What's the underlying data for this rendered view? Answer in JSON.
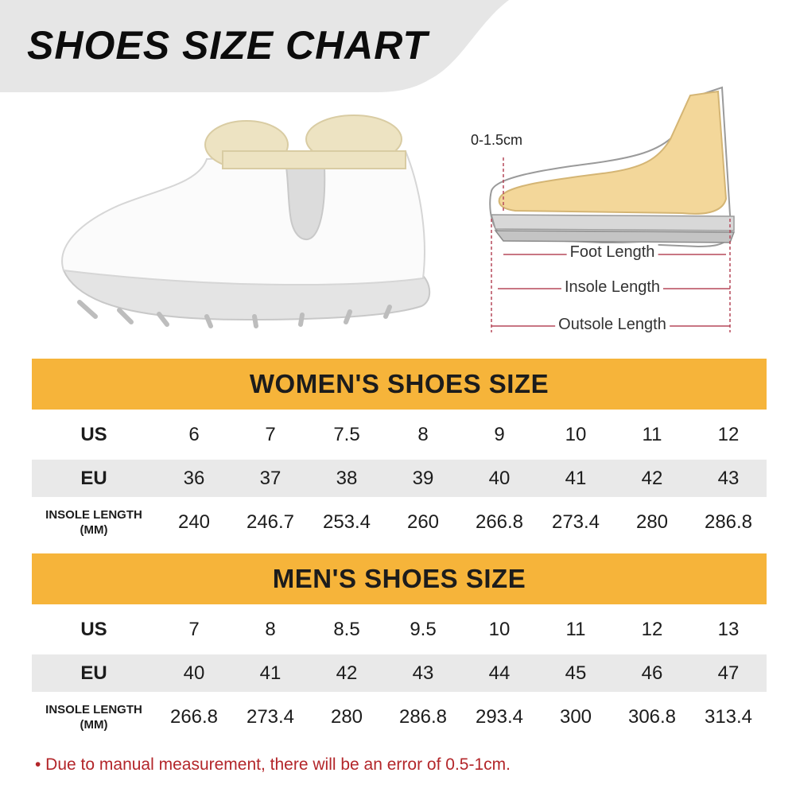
{
  "title": "SHOES SIZE CHART",
  "diagram": {
    "heel_label": "0-1.5cm",
    "foot_length": "Foot Length",
    "insole_length": "Insole Length",
    "outsole_length": "Outsole Length"
  },
  "women": {
    "heading": "WOMEN'S SHOES SIZE",
    "us_label": "US",
    "eu_label": "EU",
    "insole_label_1": "INSOLE LENGTH",
    "insole_label_2": "(MM)",
    "us": [
      "6",
      "7",
      "7.5",
      "8",
      "9",
      "10",
      "11",
      "12"
    ],
    "eu": [
      "36",
      "37",
      "38",
      "39",
      "40",
      "41",
      "42",
      "43"
    ],
    "insole": [
      "240",
      "246.7",
      "253.4",
      "260",
      "266.8",
      "273.4",
      "280",
      "286.8"
    ]
  },
  "men": {
    "heading": "MEN'S SHOES SIZE",
    "us_label": "US",
    "eu_label": "EU",
    "insole_label_1": "INSOLE LENGTH",
    "insole_label_2": "(MM)",
    "us": [
      "7",
      "8",
      "8.5",
      "9.5",
      "10",
      "11",
      "12",
      "13"
    ],
    "eu": [
      "40",
      "41",
      "42",
      "43",
      "44",
      "45",
      "46",
      "47"
    ],
    "insole": [
      "266.8",
      "273.4",
      "280",
      "286.8",
      "293.4",
      "300",
      "306.8",
      "313.4"
    ]
  },
  "note": "• Due to manual measurement, there will be an error of 0.5-1cm.",
  "colors": {
    "header_orange": "#f6b43a",
    "row_gray": "#e9e9e9",
    "banner_gray": "#e6e6e6",
    "note_red": "#b3262a",
    "foot_yellow": "#f3d79a"
  }
}
